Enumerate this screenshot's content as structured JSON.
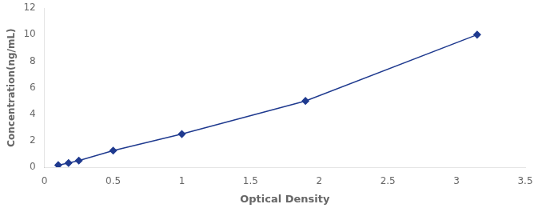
{
  "chart_data": {
    "type": "line",
    "x": [
      0.1,
      0.175,
      0.25,
      0.5,
      1.0,
      1.9,
      3.15
    ],
    "values": [
      0.156,
      0.32,
      0.5,
      1.25,
      2.5,
      5.0,
      10.0
    ],
    "color": "#1f3a8f",
    "marker": "diamond",
    "line_style": "solid",
    "xlabel": "Optical Density",
    "ylabel": "Concentration(ng/mL)",
    "xlim": [
      0,
      3.5
    ],
    "ylim": [
      0,
      12
    ],
    "xticks": [
      0,
      0.5,
      1,
      1.5,
      2,
      2.5,
      3,
      3.5
    ],
    "yticks": [
      0,
      2,
      4,
      6,
      8,
      10,
      12
    ],
    "grid": false
  }
}
